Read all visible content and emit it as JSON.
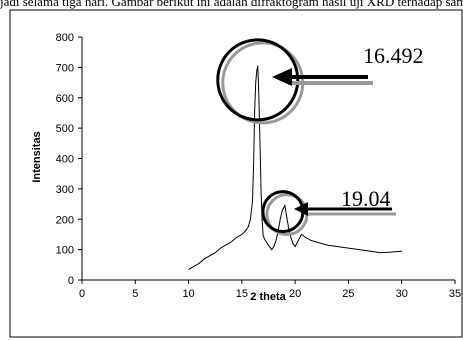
{
  "page": {
    "caption_fragment": "jadi selama tiga hari. Gambar berikut ini adalah difraktogram hasil uji XRD terhadap sampel"
  },
  "chart_data": {
    "type": "line",
    "title": "",
    "xlabel": "2 theta",
    "ylabel": "Intensitas",
    "xlim": [
      0,
      35
    ],
    "ylim": [
      0,
      800
    ],
    "xticks": [
      "0",
      "5",
      "10",
      "15",
      "20",
      "25",
      "30",
      "35"
    ],
    "yticks": [
      "0",
      "100",
      "200",
      "300",
      "400",
      "500",
      "600",
      "700",
      "800"
    ],
    "grid": false,
    "legend": "none",
    "series": [
      {
        "color": "#000000",
        "x": [
          10.0,
          10.5,
          11.0,
          11.5,
          12.0,
          12.5,
          13.0,
          13.5,
          14.0,
          14.5,
          15.0,
          15.3,
          15.6,
          15.8,
          16.0,
          16.1,
          16.2,
          16.3,
          16.4,
          16.492,
          16.6,
          16.7,
          16.8,
          16.9,
          17.0,
          17.2,
          17.5,
          17.8,
          18.0,
          18.2,
          18.4,
          18.6,
          18.8,
          19.04,
          19.2,
          19.4,
          19.6,
          19.8,
          20.0,
          20.3,
          20.6,
          21.0,
          21.5,
          22.0,
          23.0,
          24.0,
          25.0,
          26.0,
          27.0,
          28.0,
          29.0,
          30.0
        ],
        "y": [
          35,
          45,
          55,
          70,
          80,
          90,
          105,
          115,
          125,
          140,
          150,
          160,
          175,
          200,
          260,
          380,
          550,
          650,
          690,
          705,
          600,
          450,
          300,
          200,
          145,
          130,
          115,
          100,
          110,
          130,
          160,
          200,
          230,
          245,
          210,
          170,
          140,
          120,
          110,
          130,
          150,
          140,
          130,
          125,
          115,
          110,
          105,
          100,
          95,
          90,
          92,
          95
        ]
      }
    ],
    "annotations": [
      {
        "text": "16.492",
        "x": 16.492,
        "y": 705
      },
      {
        "text": "19.04",
        "x": 19.04,
        "y": 245
      }
    ]
  }
}
